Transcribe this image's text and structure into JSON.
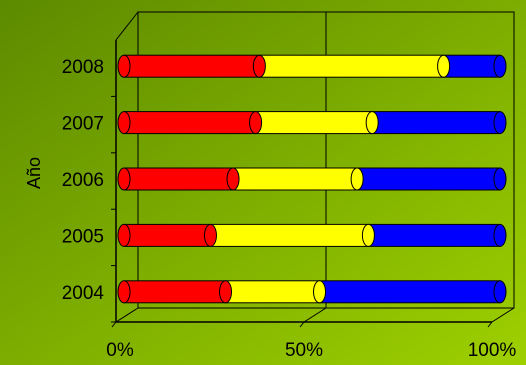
{
  "chart_data": {
    "type": "bar",
    "orientation": "horizontal",
    "stacked": "percent",
    "three_d": true,
    "title": "",
    "xlabel": "",
    "ylabel": "Año",
    "categories": [
      "2004",
      "2005",
      "2006",
      "2007",
      "2008"
    ],
    "x_ticks": [
      "0%",
      "50%",
      "100%"
    ],
    "xlim": [
      0,
      100
    ],
    "grid": "vertical",
    "legend": "none",
    "background": [
      "#5c8a00",
      "#9ed000"
    ],
    "series": [
      {
        "color": "#ff0000",
        "values": [
          27,
          23,
          29,
          35,
          36
        ]
      },
      {
        "color": "#ffff00",
        "values": [
          25,
          42,
          33,
          31,
          49
        ]
      },
      {
        "color": "#0000ff",
        "values": [
          48,
          35,
          38,
          34,
          15
        ]
      }
    ]
  }
}
